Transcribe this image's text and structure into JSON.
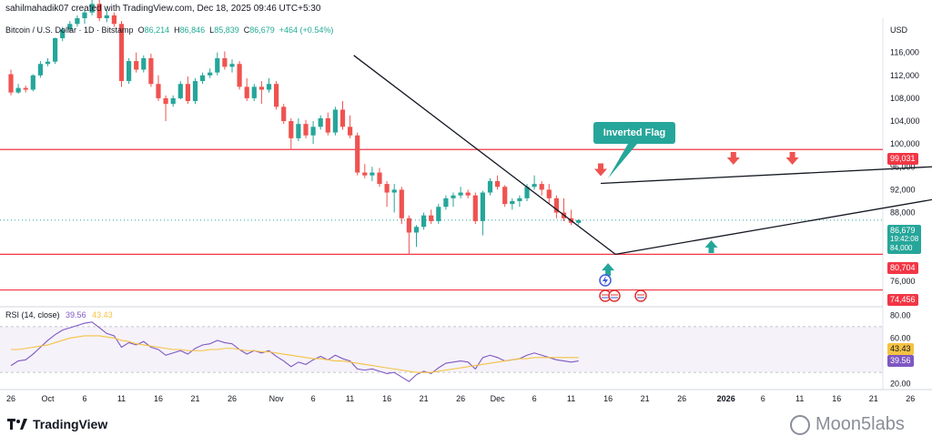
{
  "header": {
    "author_line": "sahilmahadik07 created with TradingView.com, Dec 18, 2025 09:46 UTC+5:30"
  },
  "symbol": {
    "name": "Bitcoin / U.S. Dollar · 1D · Bitstamp",
    "open_label": "O",
    "open": "86,214",
    "high_label": "H",
    "high": "86,846",
    "low_label": "L",
    "low": "85,839",
    "close_label": "C",
    "close": "86,679",
    "change": "+464 (+0.54%)"
  },
  "currency": "USD",
  "annotation": {
    "label": "Inverted Flag"
  },
  "rsi_panel": {
    "label": "RSI (14, close)",
    "rsi_value": "39.56",
    "ma_value": "43.43"
  },
  "branding": {
    "logo_text": "TradingView",
    "watermark_text": "Moon5labs"
  },
  "colors": {
    "up": "#26a69a",
    "down": "#ef5350",
    "rsi": "#7e57c2",
    "rsi_ma": "#f5c242",
    "level": "#f23645",
    "trend": "#131722"
  },
  "chart_data": [
    {
      "type": "candlestick",
      "ylim": [
        72000,
        122000
      ],
      "y_ticks": [
        76000,
        84000,
        88000,
        92000,
        96000,
        100000,
        104000,
        108000,
        112000,
        116000
      ],
      "y_tick_labels": [
        "76,000",
        "84,000",
        "88,000",
        "92,000",
        "96,000",
        "100,000",
        "104,000",
        "108,000",
        "112,000",
        "116,000"
      ],
      "x_ticks": [
        {
          "label": "26",
          "index": 0
        },
        {
          "label": "Oct",
          "index": 5
        },
        {
          "label": "6",
          "index": 10
        },
        {
          "label": "11",
          "index": 15
        },
        {
          "label": "16",
          "index": 20
        },
        {
          "label": "21",
          "index": 25
        },
        {
          "label": "26",
          "index": 30
        },
        {
          "label": "Nov",
          "index": 36
        },
        {
          "label": "6",
          "index": 41
        },
        {
          "label": "11",
          "index": 46
        },
        {
          "label": "16",
          "index": 51
        },
        {
          "label": "21",
          "index": 56
        },
        {
          "label": "26",
          "index": 61
        },
        {
          "label": "Dec",
          "index": 66
        },
        {
          "label": "6",
          "index": 71
        },
        {
          "label": "11",
          "index": 76
        },
        {
          "label": "16",
          "index": 81
        },
        {
          "label": "21",
          "index": 86
        },
        {
          "label": "26",
          "index": 91
        },
        {
          "label": "2026",
          "index": 97
        },
        {
          "label": "6",
          "index": 102
        },
        {
          "label": "11",
          "index": 107
        },
        {
          "label": "16",
          "index": 112
        },
        {
          "label": "21",
          "index": 117
        },
        {
          "label": "26",
          "index": 122
        }
      ],
      "candles": [
        {
          "o": 112200,
          "h": 113000,
          "l": 108500,
          "c": 109000
        },
        {
          "o": 109000,
          "h": 110500,
          "l": 108800,
          "c": 109800
        },
        {
          "o": 109800,
          "h": 110200,
          "l": 109000,
          "c": 109500
        },
        {
          "o": 109500,
          "h": 112200,
          "l": 109200,
          "c": 112000
        },
        {
          "o": 112000,
          "h": 114500,
          "l": 111600,
          "c": 114000
        },
        {
          "o": 114000,
          "h": 115000,
          "l": 113600,
          "c": 114400
        },
        {
          "o": 114400,
          "h": 118600,
          "l": 114000,
          "c": 118500
        },
        {
          "o": 118500,
          "h": 120500,
          "l": 118000,
          "c": 120000
        },
        {
          "o": 120000,
          "h": 121500,
          "l": 119500,
          "c": 121000
        },
        {
          "o": 121000,
          "h": 122500,
          "l": 120500,
          "c": 122000
        },
        {
          "o": 122000,
          "h": 123500,
          "l": 121000,
          "c": 123000
        },
        {
          "o": 123000,
          "h": 126000,
          "l": 122500,
          "c": 124500
        },
        {
          "o": 124500,
          "h": 125200,
          "l": 121500,
          "c": 122000
        },
        {
          "o": 122000,
          "h": 123500,
          "l": 121300,
          "c": 122500
        },
        {
          "o": 122500,
          "h": 123000,
          "l": 120500,
          "c": 121000
        },
        {
          "o": 121000,
          "h": 121500,
          "l": 110000,
          "c": 111000
        },
        {
          "o": 111000,
          "h": 115000,
          "l": 110500,
          "c": 114500
        },
        {
          "o": 114500,
          "h": 116000,
          "l": 112500,
          "c": 113000
        },
        {
          "o": 113000,
          "h": 115500,
          "l": 112500,
          "c": 115000
        },
        {
          "o": 115000,
          "h": 115800,
          "l": 110000,
          "c": 110500
        },
        {
          "o": 110500,
          "h": 112000,
          "l": 107500,
          "c": 108000
        },
        {
          "o": 108000,
          "h": 108500,
          "l": 104000,
          "c": 107000
        },
        {
          "o": 107000,
          "h": 108500,
          "l": 106500,
          "c": 108000
        },
        {
          "o": 108000,
          "h": 111000,
          "l": 107800,
          "c": 110500
        },
        {
          "o": 110500,
          "h": 111800,
          "l": 107000,
          "c": 107500
        },
        {
          "o": 107500,
          "h": 111500,
          "l": 107000,
          "c": 111000
        },
        {
          "o": 111000,
          "h": 112500,
          "l": 110500,
          "c": 112000
        },
        {
          "o": 112000,
          "h": 113200,
          "l": 111500,
          "c": 112500
        },
        {
          "o": 112500,
          "h": 116000,
          "l": 112000,
          "c": 115000
        },
        {
          "o": 115000,
          "h": 116200,
          "l": 113000,
          "c": 113500
        },
        {
          "o": 113500,
          "h": 114800,
          "l": 112500,
          "c": 114000
        },
        {
          "o": 114000,
          "h": 114500,
          "l": 109500,
          "c": 110000
        },
        {
          "o": 110000,
          "h": 111500,
          "l": 107500,
          "c": 108000
        },
        {
          "o": 108000,
          "h": 110500,
          "l": 107500,
          "c": 110000
        },
        {
          "o": 110000,
          "h": 111000,
          "l": 107000,
          "c": 109500
        },
        {
          "o": 109500,
          "h": 111500,
          "l": 109000,
          "c": 110500
        },
        {
          "o": 110500,
          "h": 111000,
          "l": 106000,
          "c": 106500
        },
        {
          "o": 106500,
          "h": 107000,
          "l": 103500,
          "c": 104000
        },
        {
          "o": 104000,
          "h": 104500,
          "l": 99000,
          "c": 101000
        },
        {
          "o": 101000,
          "h": 104500,
          "l": 100500,
          "c": 103500
        },
        {
          "o": 103500,
          "h": 104200,
          "l": 101000,
          "c": 101500
        },
        {
          "o": 101500,
          "h": 104000,
          "l": 100000,
          "c": 103000
        },
        {
          "o": 103000,
          "h": 105000,
          "l": 102500,
          "c": 104500
        },
        {
          "o": 104500,
          "h": 105500,
          "l": 101500,
          "c": 102000
        },
        {
          "o": 102000,
          "h": 106500,
          "l": 101500,
          "c": 106000
        },
        {
          "o": 106000,
          "h": 107500,
          "l": 102500,
          "c": 103000
        },
        {
          "o": 103000,
          "h": 105000,
          "l": 101000,
          "c": 101500
        },
        {
          "o": 101500,
          "h": 102000,
          "l": 94500,
          "c": 95000
        },
        {
          "o": 95000,
          "h": 96500,
          "l": 94000,
          "c": 94500
        },
        {
          "o": 94500,
          "h": 96000,
          "l": 93500,
          "c": 95000
        },
        {
          "o": 95000,
          "h": 95800,
          "l": 92500,
          "c": 93000
        },
        {
          "o": 93000,
          "h": 93500,
          "l": 89000,
          "c": 91500
        },
        {
          "o": 91500,
          "h": 93000,
          "l": 88000,
          "c": 92000
        },
        {
          "o": 92000,
          "h": 92500,
          "l": 86000,
          "c": 87000
        },
        {
          "o": 87000,
          "h": 87500,
          "l": 80600,
          "c": 84500
        },
        {
          "o": 84500,
          "h": 85800,
          "l": 82000,
          "c": 85500
        },
        {
          "o": 85500,
          "h": 88000,
          "l": 85000,
          "c": 87500
        },
        {
          "o": 87500,
          "h": 88500,
          "l": 86000,
          "c": 86500
        },
        {
          "o": 86500,
          "h": 89500,
          "l": 86000,
          "c": 89000
        },
        {
          "o": 89000,
          "h": 91000,
          "l": 88500,
          "c": 90500
        },
        {
          "o": 90500,
          "h": 91500,
          "l": 89000,
          "c": 91000
        },
        {
          "o": 91000,
          "h": 92500,
          "l": 90500,
          "c": 91500
        },
        {
          "o": 91500,
          "h": 92000,
          "l": 90500,
          "c": 91000
        },
        {
          "o": 91000,
          "h": 91500,
          "l": 86000,
          "c": 86500
        },
        {
          "o": 86500,
          "h": 91800,
          "l": 84000,
          "c": 91500
        },
        {
          "o": 91500,
          "h": 94000,
          "l": 91000,
          "c": 93500
        },
        {
          "o": 93500,
          "h": 94500,
          "l": 92000,
          "c": 92500
        },
        {
          "o": 92500,
          "h": 92800,
          "l": 89000,
          "c": 89500
        },
        {
          "o": 89500,
          "h": 90500,
          "l": 88500,
          "c": 90000
        },
        {
          "o": 90000,
          "h": 91000,
          "l": 89000,
          "c": 90500
        },
        {
          "o": 90500,
          "h": 93000,
          "l": 90000,
          "c": 92500
        },
        {
          "o": 92500,
          "h": 94500,
          "l": 92000,
          "c": 93000
        },
        {
          "o": 93000,
          "h": 93500,
          "l": 91000,
          "c": 92000
        },
        {
          "o": 92000,
          "h": 93000,
          "l": 89500,
          "c": 90500
        },
        {
          "o": 90500,
          "h": 91000,
          "l": 87000,
          "c": 88000
        },
        {
          "o": 88000,
          "h": 90500,
          "l": 86500,
          "c": 87000
        },
        {
          "o": 87000,
          "h": 88500,
          "l": 85800,
          "c": 86200
        },
        {
          "o": 86200,
          "h": 86846,
          "l": 85839,
          "c": 86679
        }
      ],
      "levels": [
        {
          "price": 99031,
          "label": "99,031"
        },
        {
          "price": 80704,
          "label": "80,704"
        },
        {
          "price": 74456,
          "label": "74,456"
        }
      ],
      "current_price": {
        "price": 86679,
        "label": "86,679",
        "countdown": "19:42:08",
        "sub_label": "84,000"
      },
      "trendlines": [
        {
          "from": {
            "index": 46.5,
            "price": 115500
          },
          "to": {
            "index": 82,
            "price": 80700
          },
          "color": "trend"
        },
        {
          "from": {
            "index": 82,
            "price": 80700
          },
          "to": {
            "index": 140,
            "price": 93600
          },
          "color": "trend"
        },
        {
          "from": {
            "index": 80,
            "price": 93100
          },
          "to": {
            "index": 131,
            "price": 96400
          },
          "color": "trend"
        }
      ],
      "markers": [
        {
          "kind": "down-arrow",
          "index": 80,
          "price": 95000
        },
        {
          "kind": "down-arrow",
          "index": 98,
          "price": 97000
        },
        {
          "kind": "down-arrow",
          "index": 106,
          "price": 97000
        },
        {
          "kind": "up-arrow",
          "index": 81,
          "price": 78500
        },
        {
          "kind": "up-arrow",
          "index": 95,
          "price": 82500
        }
      ]
    },
    {
      "type": "line",
      "title": "RSI (14, close)",
      "ylim": [
        15,
        85
      ],
      "y_ticks": [
        20,
        40,
        60,
        80
      ],
      "y_tick_labels": [
        "20.00",
        "",
        "60.00",
        "80.00"
      ],
      "series": [
        {
          "name": "RSI",
          "values": [
            36,
            40,
            41,
            46,
            52,
            58,
            63,
            67,
            69,
            71,
            73,
            74,
            69,
            64,
            62,
            52,
            56,
            54,
            57,
            52,
            50,
            45,
            47,
            49,
            46,
            51,
            54,
            55,
            58,
            56,
            55,
            50,
            46,
            49,
            47,
            49,
            44,
            40,
            35,
            39,
            37,
            41,
            44,
            41,
            45,
            42,
            40,
            33,
            32,
            33,
            31,
            29,
            30,
            26,
            22,
            28,
            31,
            29,
            34,
            38,
            39,
            40,
            39,
            33,
            43,
            45,
            43,
            40,
            41,
            42,
            45,
            47,
            45,
            43,
            41,
            40,
            39,
            40
          ]
        },
        {
          "name": "RSI-based MA",
          "values": [
            50,
            50,
            51,
            52,
            53,
            54,
            56,
            58,
            60,
            61,
            62,
            62,
            62,
            61,
            60,
            58,
            57,
            55,
            54,
            53,
            52,
            51,
            50,
            50,
            49,
            49,
            49,
            50,
            50,
            51,
            51,
            50,
            49,
            49,
            48,
            48,
            47,
            46,
            45,
            44,
            43,
            42,
            42,
            41,
            40,
            40,
            39,
            38,
            37,
            36,
            35,
            34,
            33,
            32,
            31,
            30,
            30,
            30,
            31,
            32,
            33,
            34,
            35,
            36,
            37,
            38,
            39,
            40,
            41,
            42,
            42,
            43,
            43,
            43,
            43,
            43,
            43,
            43
          ]
        }
      ]
    }
  ]
}
